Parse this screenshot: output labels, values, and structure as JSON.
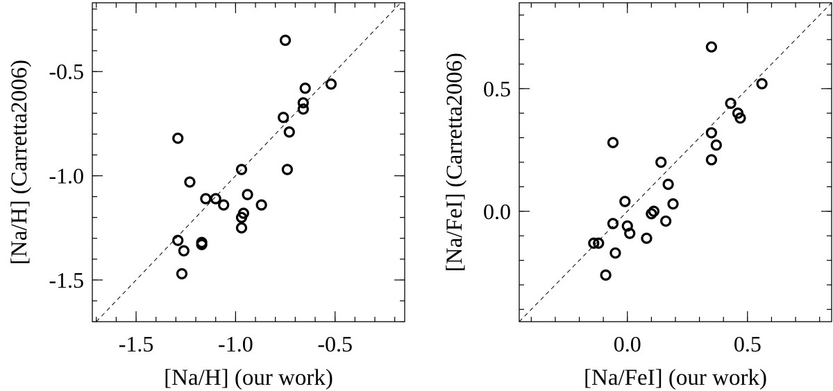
{
  "chart_data": [
    {
      "type": "scatter",
      "xlabel": "[Na/H] (our work)",
      "ylabel": "[Na/H] (Carretta2006)",
      "xlim": [
        -1.72,
        -0.15
      ],
      "ylim": [
        -1.7,
        -0.17
      ],
      "xticks": [
        -1.5,
        -1.0,
        -0.5
      ],
      "yticks": [
        -1.5,
        -1.0,
        -0.5
      ],
      "xtick_labels": [
        "-1.5",
        "-1.0",
        "-0.5"
      ],
      "ytick_labels": [
        "-1.5",
        "-1.0",
        "-0.5"
      ],
      "minor_step": 0.1,
      "reference_line": "y = x (dashed)",
      "grid": false,
      "x": [
        -0.75,
        -0.52,
        -0.65,
        -0.66,
        -0.66,
        -0.76,
        -0.73,
        -0.74,
        -1.29,
        -0.97,
        -1.23,
        -1.15,
        -1.1,
        -1.06,
        -0.94,
        -0.96,
        -0.97,
        -0.97,
        -0.87,
        -1.29,
        -1.17,
        -1.17,
        -1.26,
        -1.27
      ],
      "y": [
        -0.35,
        -0.56,
        -0.58,
        -0.65,
        -0.68,
        -0.72,
        -0.79,
        -0.97,
        -0.82,
        -0.97,
        -1.03,
        -1.11,
        -1.11,
        -1.14,
        -1.09,
        -1.18,
        -1.2,
        -1.25,
        -1.14,
        -1.31,
        -1.32,
        -1.33,
        -1.36,
        -1.47
      ]
    },
    {
      "type": "scatter",
      "xlabel": "[Na/FeI] (our work)",
      "ylabel": "[Na/FeI] (Carretta2006)",
      "xlim": [
        -0.45,
        0.85
      ],
      "ylim": [
        -0.45,
        0.85
      ],
      "xticks": [
        0.0,
        0.5
      ],
      "yticks": [
        0.0,
        0.5
      ],
      "xtick_labels": [
        "0.0",
        "0.5"
      ],
      "ytick_labels": [
        "0.0",
        "0.5"
      ],
      "minor_step": 0.1,
      "reference_line": "y = x (dashed)",
      "grid": false,
      "x": [
        0.35,
        0.56,
        0.43,
        0.46,
        0.47,
        0.35,
        0.37,
        0.35,
        -0.06,
        0.14,
        0.17,
        -0.01,
        0.19,
        0.11,
        0.1,
        0.16,
        0.0,
        0.01,
        0.08,
        -0.06,
        -0.14,
        -0.12,
        -0.05,
        -0.09
      ],
      "y": [
        0.67,
        0.52,
        0.44,
        0.4,
        0.38,
        0.32,
        0.27,
        0.21,
        0.28,
        0.2,
        0.11,
        0.04,
        0.03,
        0.0,
        -0.01,
        -0.04,
        -0.06,
        -0.09,
        -0.11,
        -0.05,
        -0.13,
        -0.13,
        -0.17,
        -0.26
      ]
    }
  ]
}
